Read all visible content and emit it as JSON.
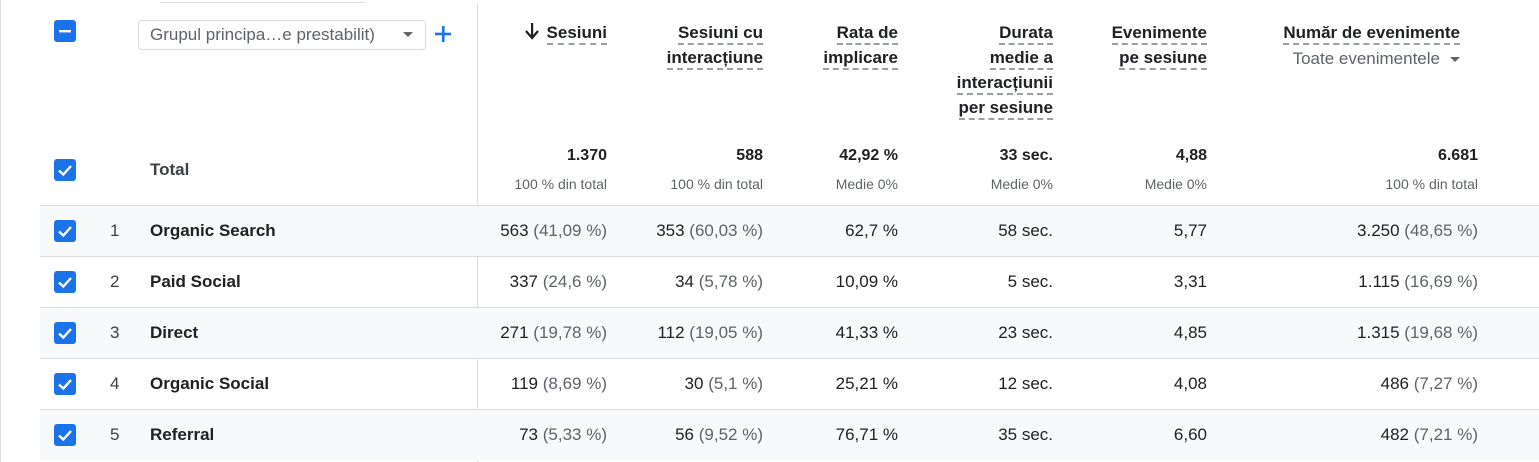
{
  "accent_color": "#1a73e8",
  "dimension_selector": {
    "value": "Grupul principa…e prestabilit)",
    "add_icon": "plus-icon"
  },
  "columns": [
    {
      "key": "sessions",
      "label_lines": [
        "Sesiuni"
      ],
      "sort_icon": "arrow-down-icon"
    },
    {
      "key": "engaged_sessions",
      "label_lines": [
        "Sesiuni cu",
        "interacțiune"
      ]
    },
    {
      "key": "engagement_rate",
      "label_lines": [
        "Rata de",
        "implicare"
      ]
    },
    {
      "key": "avg_engagement",
      "label_lines": [
        "Durata",
        "medie a",
        "interacțiunii",
        "per sesiune"
      ]
    },
    {
      "key": "events_per_session",
      "label_lines": [
        "Evenimente",
        "pe sesiune"
      ]
    },
    {
      "key": "event_count",
      "label_lines": [
        "Număr de evenimente"
      ],
      "sub_select": "Toate evenimentele"
    }
  ],
  "total": {
    "label": "Total",
    "values": [
      "1.370",
      "588",
      "42,92 %",
      "33 sec.",
      "4,88",
      "6.681"
    ],
    "subs": [
      "100 % din total",
      "100 % din total",
      "Medie 0%",
      "Medie 0%",
      "Medie 0%",
      "100 % din total"
    ]
  },
  "rows": [
    {
      "num": "1",
      "name": "Organic Search",
      "cells": [
        {
          "v": "563",
          "p": "(41,09 %)"
        },
        {
          "v": "353",
          "p": "(60,03 %)"
        },
        {
          "v": "62,7 %",
          "p": ""
        },
        {
          "v": "58 sec.",
          "p": ""
        },
        {
          "v": "5,77",
          "p": ""
        },
        {
          "v": "3.250",
          "p": "(48,65 %)"
        }
      ]
    },
    {
      "num": "2",
      "name": "Paid Social",
      "cells": [
        {
          "v": "337",
          "p": "(24,6 %)"
        },
        {
          "v": "34",
          "p": "(5,78 %)"
        },
        {
          "v": "10,09 %",
          "p": ""
        },
        {
          "v": "5 sec.",
          "p": ""
        },
        {
          "v": "3,31",
          "p": ""
        },
        {
          "v": "1.115",
          "p": "(16,69 %)"
        }
      ]
    },
    {
      "num": "3",
      "name": "Direct",
      "cells": [
        {
          "v": "271",
          "p": "(19,78 %)"
        },
        {
          "v": "112",
          "p": "(19,05 %)"
        },
        {
          "v": "41,33 %",
          "p": ""
        },
        {
          "v": "23 sec.",
          "p": ""
        },
        {
          "v": "4,85",
          "p": ""
        },
        {
          "v": "1.315",
          "p": "(19,68 %)"
        }
      ]
    },
    {
      "num": "4",
      "name": "Organic Social",
      "cells": [
        {
          "v": "119",
          "p": "(8,69 %)"
        },
        {
          "v": "30",
          "p": "(5,1 %)"
        },
        {
          "v": "25,21 %",
          "p": ""
        },
        {
          "v": "12 sec.",
          "p": ""
        },
        {
          "v": "4,08",
          "p": ""
        },
        {
          "v": "486",
          "p": "(7,27 %)"
        }
      ]
    },
    {
      "num": "5",
      "name": "Referral",
      "cells": [
        {
          "v": "73",
          "p": "(5,33 %)"
        },
        {
          "v": "56",
          "p": "(9,52 %)"
        },
        {
          "v": "76,71 %",
          "p": ""
        },
        {
          "v": "35 sec.",
          "p": ""
        },
        {
          "v": "6,60",
          "p": ""
        },
        {
          "v": "482",
          "p": "(7,21 %)"
        }
      ]
    }
  ]
}
